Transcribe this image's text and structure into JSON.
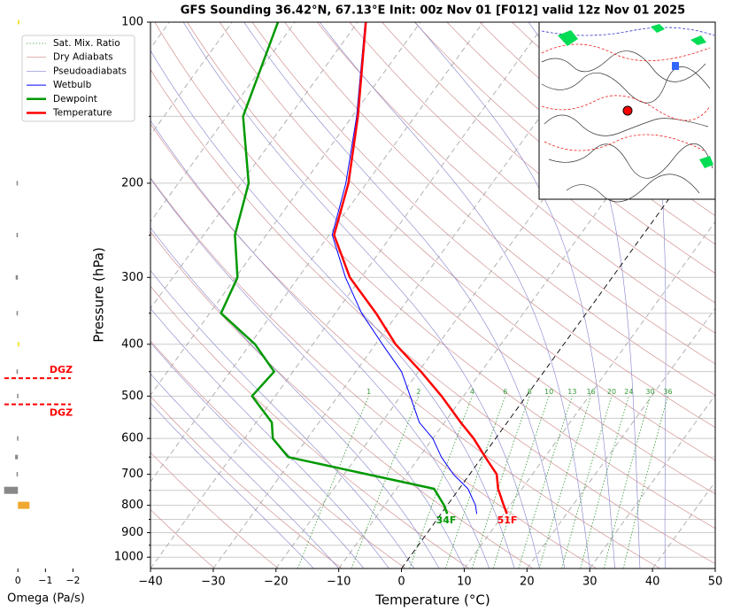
{
  "chart_data": {
    "type": "skewt",
    "title": "GFS Sounding 36.42°N, 67.13°E Init: 00z Nov 01 [F012] valid 12z Nov 01 2025",
    "xlabel": "Temperature (°C)",
    "ylabel": "Pressure (hPa)",
    "xlim": [
      -40,
      50
    ],
    "ylim": [
      1050,
      100
    ],
    "log_y": true,
    "grid": true,
    "xticks": [
      {
        "value": -40,
        "label": "−40"
      },
      {
        "value": -30,
        "label": "−30"
      },
      {
        "value": -20,
        "label": "−20"
      },
      {
        "value": -10,
        "label": "−10"
      },
      0,
      10,
      20,
      30,
      40,
      50
    ],
    "yticks": [
      100,
      200,
      300,
      400,
      500,
      600,
      700,
      800,
      900,
      1000
    ],
    "minor_yticks": [
      150,
      250,
      350,
      450,
      550,
      650,
      750,
      850,
      950
    ],
    "pressure": [
      830,
      800,
      745,
      700,
      650,
      600,
      560,
      500,
      450,
      400,
      350,
      300,
      250,
      200,
      150,
      100
    ],
    "series": [
      {
        "name": "Wetbulb",
        "color": "#0000ff",
        "values": [
          5.7,
          4.5,
          1.4,
          -2.6,
          -6.5,
          -10.0,
          -14.0,
          -18.5,
          -22.7,
          -28.9,
          -35.8,
          -42.5,
          -49.5,
          -53.3,
          -59.3,
          -68.8
        ]
      },
      {
        "name": "Dewpoint",
        "color": "#009900",
        "values": [
          1.0,
          -0.5,
          -4.0,
          -16.3,
          -30.9,
          -35.5,
          -37.5,
          -43.7,
          -43.0,
          -49.2,
          -58.2,
          -59.7,
          -65.0,
          -68.8,
          -77.4,
          -82.7
        ]
      },
      {
        "name": "Temperature",
        "color": "#ff0000",
        "values": [
          10.5,
          9.0,
          6.2,
          4.3,
          0.5,
          -3.5,
          -7.4,
          -13.5,
          -19.6,
          -26.8,
          -33.5,
          -41.8,
          -49.2,
          -52.9,
          -59.1,
          -68.7
        ]
      }
    ],
    "reference_lines": [
      {
        "name": "Sat. Mix. Ratio",
        "color": "#339933"
      },
      {
        "name": "Dry Adiabats",
        "color": "#cc8080"
      },
      {
        "name": "Pseudoadiabats",
        "color": "#8080cc"
      }
    ],
    "mixing_ratio_labels": [
      1,
      2,
      4,
      6,
      8,
      10,
      13,
      16,
      20,
      24,
      30,
      36
    ],
    "surface_labels": [
      {
        "text": "34F",
        "color": "#009900"
      },
      {
        "text": "51F",
        "color": "#ff0000"
      }
    ],
    "dgz": {
      "label": "DGZ",
      "color": "#ff0000",
      "pressures": [
        463,
        518
      ]
    },
    "omega": {
      "xlabel": "Omega (Pa/s)",
      "xlim": [
        0.65,
        -2.05
      ],
      "xticks": [
        0,
        {
          "value": -1,
          "label": "−1"
        },
        {
          "value": -2,
          "label": "−2"
        }
      ],
      "pressure": [
        100,
        200,
        250,
        300,
        350,
        400,
        450,
        500,
        600,
        650,
        700,
        750,
        800
      ],
      "values": [
        -0.02,
        0.05,
        0.05,
        0.08,
        0.05,
        -0.03,
        0.05,
        0.03,
        0.03,
        0.1,
        0.05,
        0.5,
        -0.42
      ],
      "colors": [
        "#eedd00",
        "#888888",
        "#888888",
        "#888888",
        "#888888",
        "#eedd00",
        "#888888",
        "#888888",
        "#888888",
        "#888888",
        "#888888",
        "#888888",
        "#f0a830"
      ]
    }
  }
}
